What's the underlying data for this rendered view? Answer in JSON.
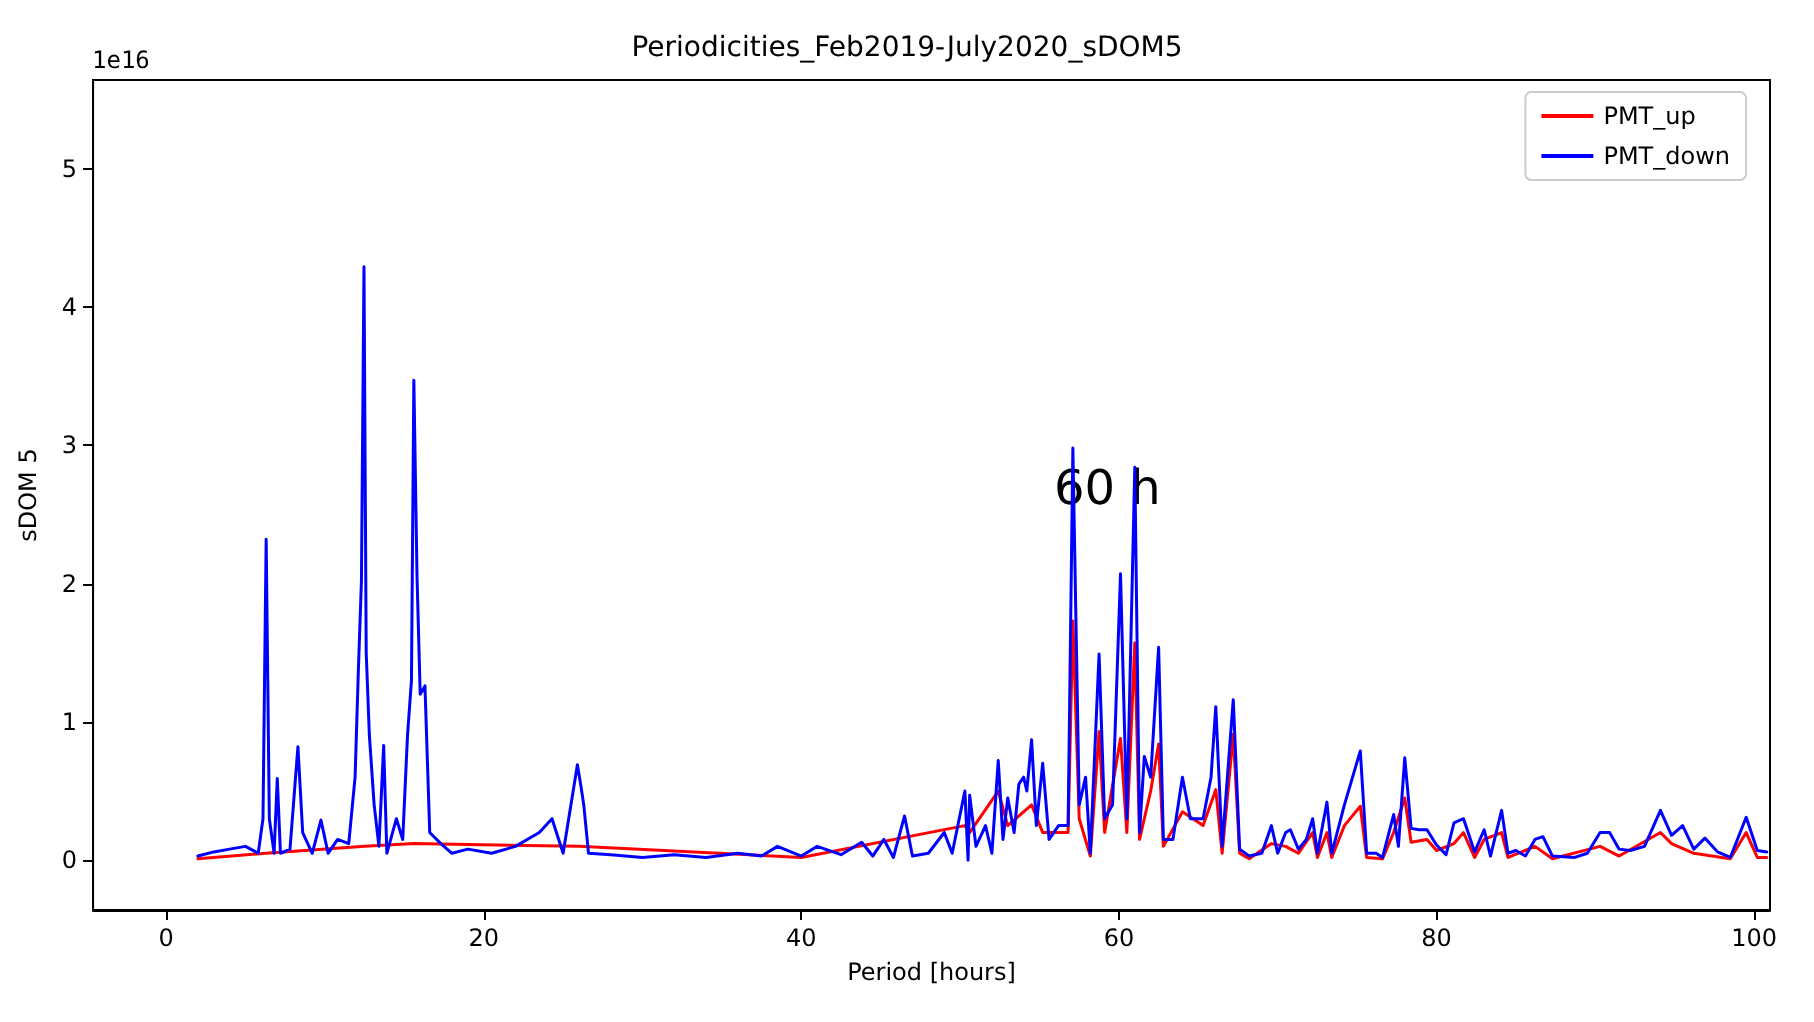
{
  "chart_data": {
    "type": "line",
    "title": "Periodicities_Feb2019-July2020_sDOM5",
    "xlabel": "Period [hours]",
    "ylabel": "sDOM 5",
    "annotations": [
      "1e16",
      "60 h"
    ],
    "xlim": [
      -4.6,
      101
    ],
    "xticks": [
      0,
      20,
      40,
      60,
      80,
      100
    ],
    "ylim": [
      -0.36,
      5.64
    ],
    "yticks": [
      0,
      1,
      2,
      3,
      4,
      5
    ],
    "grid": false,
    "legend": "top right",
    "marker": "none",
    "line_style": "solid",
    "series": [
      {
        "name": "PMT_up",
        "color": "#ff0000",
        "x": [
          2.0,
          6.3,
          12.5,
          15.6,
          26.0,
          40,
          50.3,
          50.6,
          52.4,
          53.0,
          54.5,
          55.2,
          56.8,
          57.1,
          57.5,
          58.2,
          58.75,
          59.1,
          60.1,
          60.5,
          61.0,
          61.3,
          62.0,
          62.5,
          62.8,
          64.0,
          65.3,
          66.1,
          66.5,
          67.2,
          67.6,
          68.2,
          69.6,
          70.5,
          71.3,
          72.2,
          72.5,
          73.1,
          73.4,
          74.2,
          75.2,
          75.6,
          76.6,
          77.3,
          78.0,
          78.4,
          79.4,
          80.0,
          81.1,
          81.7,
          82.4,
          83.0,
          84.1,
          84.5,
          86.2,
          87.3,
          90.3,
          91.5,
          94.1,
          94.8,
          96.2,
          98.5,
          99.5,
          100.2,
          100.8
        ],
        "values": [
          0.01,
          0.05,
          0.1,
          0.12,
          0.1,
          0.02,
          0.25,
          0.2,
          0.5,
          0.25,
          0.4,
          0.2,
          0.2,
          1.73,
          0.3,
          0.03,
          0.93,
          0.2,
          0.88,
          0.2,
          1.57,
          0.15,
          0.5,
          0.84,
          0.1,
          0.35,
          0.25,
          0.51,
          0.05,
          0.91,
          0.05,
          0.01,
          0.12,
          0.1,
          0.05,
          0.2,
          0.02,
          0.2,
          0.02,
          0.25,
          0.39,
          0.02,
          0.01,
          0.2,
          0.45,
          0.13,
          0.15,
          0.07,
          0.12,
          0.2,
          0.02,
          0.15,
          0.2,
          0.02,
          0.1,
          0.01,
          0.1,
          0.03,
          0.2,
          0.12,
          0.05,
          0.01,
          0.2,
          0.02,
          0.02
        ]
      },
      {
        "name": "PMT_down",
        "color": "#0000ff",
        "x": [
          2.0,
          3.0,
          4.0,
          5.0,
          5.8,
          6.1,
          6.3,
          6.5,
          6.8,
          7.0,
          7.2,
          7.8,
          8.3,
          8.6,
          9.2,
          9.75,
          10.2,
          10.8,
          11.5,
          11.9,
          12.1,
          12.3,
          12.46,
          12.6,
          12.8,
          13.1,
          13.4,
          13.7,
          13.9,
          14.5,
          14.9,
          15.2,
          15.45,
          15.6,
          15.8,
          16.0,
          16.3,
          16.6,
          17.3,
          18.0,
          19.0,
          20.5,
          22.0,
          23.5,
          24.3,
          25.0,
          25.9,
          26.1,
          26.3,
          26.6,
          28,
          30,
          32,
          34,
          36,
          37.5,
          38.5,
          40,
          41,
          42.5,
          43.8,
          44.5,
          45.2,
          45.8,
          46.5,
          47,
          48,
          49,
          49.5,
          50.3,
          50.5,
          50.6,
          51,
          51.6,
          52.0,
          52.4,
          52.7,
          53.0,
          53.4,
          53.7,
          54.0,
          54.2,
          54.5,
          54.8,
          55.2,
          55.6,
          56.2,
          56.8,
          57.1,
          57.5,
          57.9,
          58.2,
          58.75,
          59.1,
          59.6,
          60.1,
          60.5,
          61.0,
          61.3,
          61.6,
          62.0,
          62.5,
          62.8,
          63.4,
          64.0,
          64.5,
          65.3,
          65.8,
          66.1,
          66.5,
          67.2,
          67.6,
          68.2,
          69.0,
          69.6,
          70.0,
          70.5,
          70.8,
          71.3,
          71.8,
          72.2,
          72.5,
          73.1,
          73.4,
          74.2,
          75.2,
          75.6,
          76.2,
          76.6,
          77.3,
          77.6,
          78.0,
          78.4,
          78.9,
          79.4,
          80.0,
          80.6,
          81.1,
          81.7,
          82.4,
          83.0,
          83.4,
          84.1,
          84.5,
          85.0,
          85.6,
          86.2,
          86.7,
          87.3,
          88.7,
          89.5,
          90.3,
          90.9,
          91.5,
          92.2,
          93.1,
          94.1,
          94.8,
          95.5,
          96.2,
          96.9,
          97.7,
          98.5,
          99.5,
          100.2,
          100.8
        ],
        "values": [
          0.03,
          0.06,
          0.08,
          0.1,
          0.05,
          0.3,
          2.32,
          0.3,
          0.05,
          0.59,
          0.05,
          0.08,
          0.82,
          0.2,
          0.05,
          0.29,
          0.05,
          0.15,
          0.12,
          0.6,
          1.35,
          2.02,
          4.29,
          1.5,
          0.9,
          0.4,
          0.1,
          0.83,
          0.05,
          0.3,
          0.15,
          0.9,
          1.3,
          3.47,
          2.05,
          1.2,
          1.26,
          0.2,
          0.12,
          0.05,
          0.08,
          0.05,
          0.1,
          0.2,
          0.3,
          0.05,
          0.69,
          0.55,
          0.4,
          0.05,
          0.04,
          0.02,
          0.04,
          0.02,
          0.05,
          0.03,
          0.1,
          0.03,
          0.1,
          0.04,
          0.13,
          0.03,
          0.15,
          0.02,
          0.32,
          0.03,
          0.05,
          0.2,
          0.05,
          0.5,
          0,
          0.47,
          0.1,
          0.25,
          0.05,
          0.72,
          0.15,
          0.45,
          0.2,
          0.55,
          0.6,
          0.5,
          0.87,
          0.25,
          0.7,
          0.15,
          0.25,
          0.25,
          2.98,
          0.4,
          0.6,
          0.05,
          1.49,
          0.3,
          0.4,
          2.07,
          0.3,
          2.84,
          0.2,
          0.75,
          0.6,
          1.54,
          0.15,
          0.15,
          0.6,
          0.3,
          0.3,
          0.6,
          1.11,
          0.1,
          1.16,
          0.08,
          0.03,
          0.05,
          0.25,
          0.05,
          0.2,
          0.22,
          0.08,
          0.15,
          0.3,
          0.05,
          0.42,
          0.05,
          0.4,
          0.79,
          0.05,
          0.05,
          0.02,
          0.33,
          0.1,
          0.74,
          0.23,
          0.22,
          0.22,
          0.11,
          0.04,
          0.27,
          0.3,
          0.06,
          0.22,
          0.03,
          0.36,
          0.05,
          0.07,
          0.03,
          0.15,
          0.17,
          0.03,
          0.02,
          0.05,
          0.2,
          0.2,
          0.08,
          0.07,
          0.1,
          0.36,
          0.18,
          0.25,
          0.08,
          0.16,
          0.06,
          0.02,
          0.31,
          0.07,
          0.06
        ]
      }
    ]
  }
}
